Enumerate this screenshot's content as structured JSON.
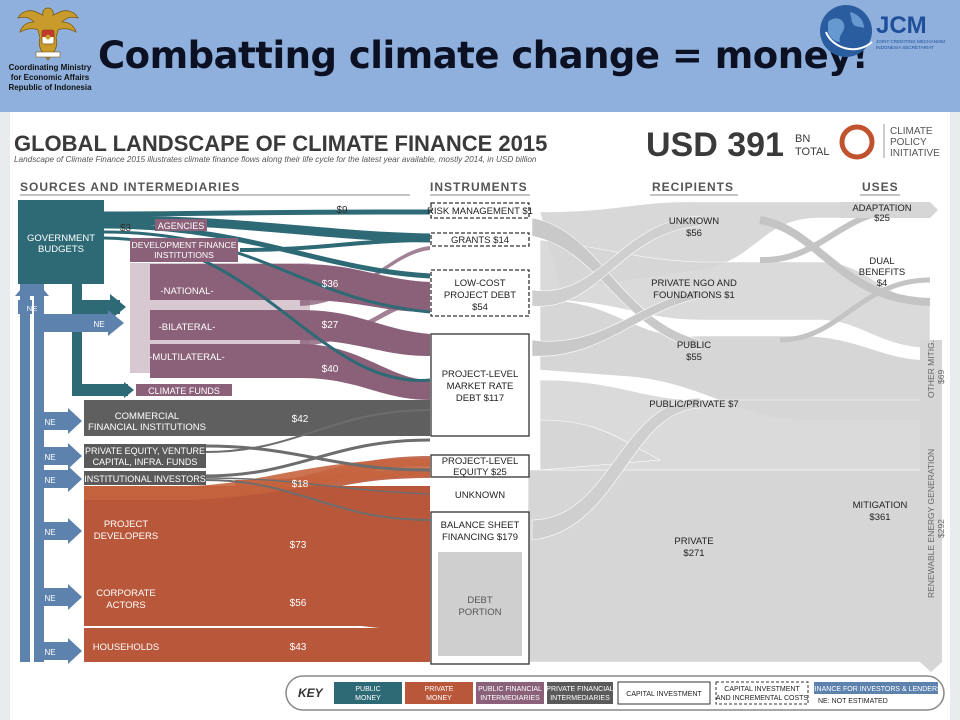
{
  "header": {
    "ministry_line1": "Coordinating Ministry",
    "ministry_line2": "for Economic Affairs",
    "ministry_line3": "Republic of Indonesia",
    "slide_title": "Combatting climate change = money!",
    "jcm_logo_text": "JCM",
    "jcm_sub1": "JOINT CREDITING MECHANISM",
    "jcm_sub2": "INDONESIA SECRETARIAT"
  },
  "infographic": {
    "title": "GLOBAL LANDSCAPE OF CLIMATE FINANCE 2015",
    "subtitle": "Landscape of Climate Finance 2015 illustrates climate finance flows along their life cycle for the latest year available, mostly 2014, in USD billion",
    "total_value": "USD 391",
    "total_unit1": "BN",
    "total_unit2": "TOTAL",
    "cpi_line1": "CLIMATE",
    "cpi_line2": "POLICY",
    "cpi_line3": "INITIATIVE",
    "columns": {
      "sources": "SOURCES AND INTERMEDIARIES",
      "instruments": "INSTRUMENTS",
      "recipients": "RECIPIENTS",
      "uses": "USES"
    },
    "sources": {
      "government_budgets_1": "GOVERNMENT",
      "government_budgets_2": "BUDGETS",
      "agencies": "AGENCIES",
      "dfi_1": "DEVELOPMENT FINANCE",
      "dfi_2": "INSTITUTIONS",
      "national": "-NATIONAL-",
      "bilateral": "-BILATERAL-",
      "multilateral": "-MULTILATERAL-",
      "climate_funds": "CLIMATE FUNDS",
      "commercial_1": "COMMERCIAL",
      "commercial_2": "FINANCIAL INSTITUTIONS",
      "private_equity_1": "PRIVATE EQUITY, VENTURE",
      "private_equity_2": "CAPITAL, INFRA. FUNDS",
      "institutional": "INSTITUTIONAL INVESTORS",
      "project_dev_1": "PROJECT",
      "project_dev_2": "DEVELOPERS",
      "corporate_1": "CORPORATE",
      "corporate_2": "ACTORS",
      "households": "HOUSEHOLDS"
    },
    "flow_values": {
      "v9": "$9",
      "v3": "$3",
      "v36": "$36",
      "v27": "$27",
      "v40": "$40",
      "v42": "$42",
      "v18": "$18",
      "v73": "$73",
      "v56": "$56",
      "v43": "$43"
    },
    "ne": "NE",
    "instruments": {
      "risk": "RISK MANAGEMENT $1",
      "grants": "GRANTS $14",
      "lowcost_1": "LOW-COST",
      "lowcost_2": "PROJECT DEBT",
      "lowcost_3": "$54",
      "market_1": "PROJECT-LEVEL",
      "market_2": "MARKET RATE",
      "market_3": "DEBT $117",
      "equity_1": "PROJECT-LEVEL",
      "equity_2": "EQUITY $25",
      "unknown": "UNKNOWN",
      "balance_1": "BALANCE SHEET",
      "balance_2": "FINANCING $179",
      "debt_1": "DEBT",
      "debt_2": "PORTION"
    },
    "recipients": {
      "unknown_1": "UNKNOWN",
      "unknown_2": "$56",
      "ngo_1": "PRIVATE NGO AND",
      "ngo_2": "FOUNDATIONS $1",
      "public_1": "PUBLIC",
      "public_2": "$55",
      "pubpriv": "PUBLIC/PRIVATE $7",
      "private_1": "PRIVATE",
      "private_2": "$271"
    },
    "uses": {
      "adaptation_1": "ADAPTATION",
      "adaptation_2": "$25",
      "dual_1": "DUAL",
      "dual_2": "BENEFITS",
      "dual_3": "$4",
      "other_1": "OTHER MITIG.",
      "other_2": "$69",
      "mitigation_1": "MITIGATION",
      "mitigation_2": "$361",
      "renewable_1": "RENEWABLE ENERGY GENERATION",
      "renewable_2": "$292"
    },
    "key": {
      "label": "KEY",
      "public_money_1": "PUBLIC",
      "public_money_2": "MONEY",
      "private_money_1": "PRIVATE",
      "private_money_2": "MONEY",
      "pfi_1": "PUBLIC FINANCIAL",
      "pfi_2": "INTERMEDIARIES",
      "prfi_1": "PRIVATE FINANCIAL",
      "prfi_2": "INTERMEDIARIES",
      "capital": "CAPITAL INVESTMENT",
      "capital_incr_1": "CAPITAL INVESTMENT",
      "capital_incr_2": "AND INCREMENTAL COSTS",
      "finance_investors": "FINANCE FOR INVESTORS & LENDERS",
      "ne_note": "NE: NOT ESTIMATED"
    },
    "colors": {
      "public": "#2e6a76",
      "private": "#b9573b",
      "pfi": "#8a6178",
      "prfi": "#5a5a5a",
      "gray_flow": "#d6d6d6",
      "ne_blue": "#5d82ad",
      "header_bg": "#8fb0dc"
    }
  }
}
